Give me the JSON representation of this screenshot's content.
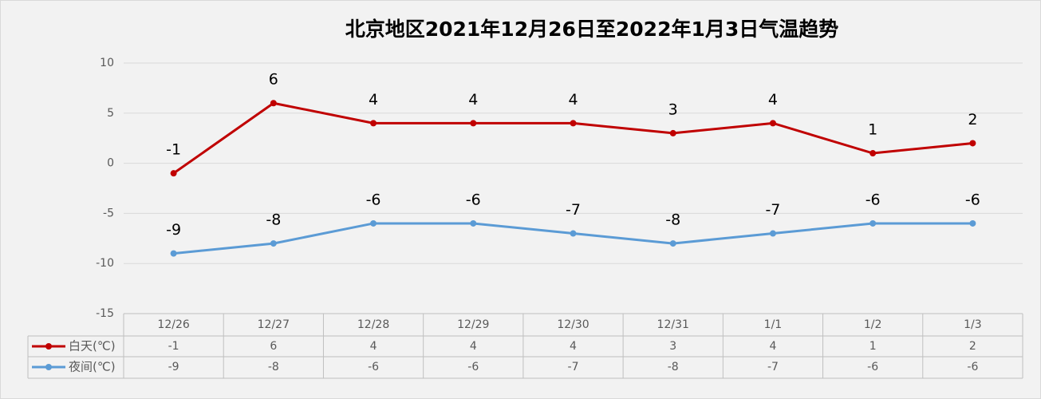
{
  "chart_data": {
    "type": "line",
    "title": "北京地区2021年12月26日至2022年1月3日气温趋势",
    "categories": [
      "12/26",
      "12/27",
      "12/28",
      "12/29",
      "12/30",
      "12/31",
      "1/1",
      "1/2",
      "1/3"
    ],
    "series": [
      {
        "name": "白天(℃)",
        "color": "#c00000",
        "values": [
          -1,
          6,
          4,
          4,
          4,
          3,
          4,
          1,
          2
        ]
      },
      {
        "name": "夜间(℃)",
        "color": "#5b9bd5",
        "values": [
          -9,
          -8,
          -6,
          -6,
          -7,
          -8,
          -7,
          -6,
          -6
        ]
      }
    ],
    "ylim": [
      -15,
      10
    ],
    "yticks": [
      -15,
      -10,
      -5,
      0,
      5,
      10
    ],
    "grid": true
  }
}
